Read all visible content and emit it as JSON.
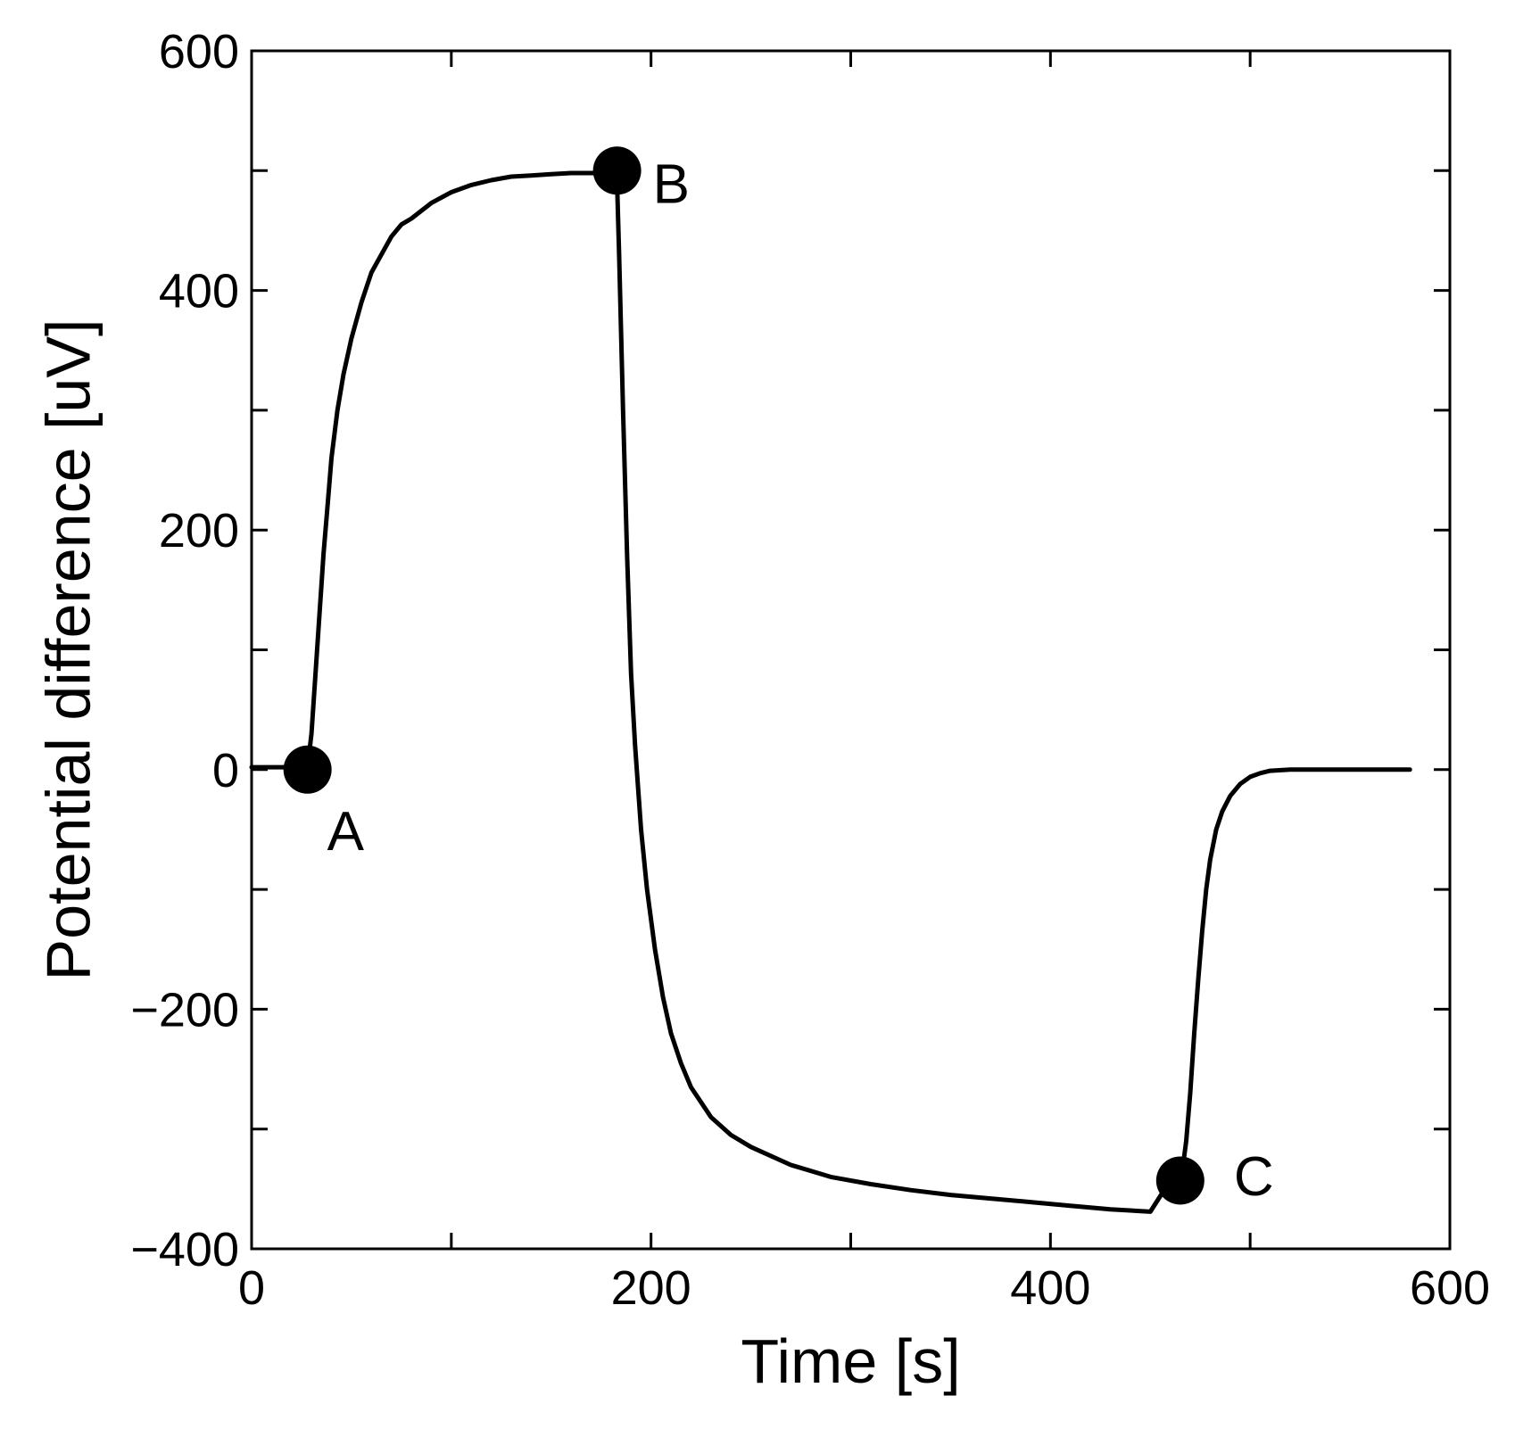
{
  "chart_data": {
    "type": "line",
    "title": "",
    "xlabel": "Time [s]",
    "ylabel": "Potential difference [uV]",
    "xlim": [
      0,
      600
    ],
    "ylim": [
      -400,
      600
    ],
    "xticks": [
      0,
      200,
      400,
      600
    ],
    "yticks": [
      600,
      400,
      200,
      0,
      -200,
      -400
    ],
    "xtick_labels": [
      "0",
      "200",
      "400",
      "600"
    ],
    "ytick_labels": [
      "600",
      "400",
      "200",
      "0",
      "−200",
      "−400"
    ],
    "x_minor_step": 100,
    "y_minor_step": 100,
    "grid": false,
    "legend": "none",
    "series": [
      {
        "name": "Potential difference",
        "color": "#000000",
        "x": [
          0,
          10,
          20,
          28,
          30,
          32,
          34,
          36,
          38,
          40,
          43,
          46,
          50,
          55,
          60,
          65,
          70,
          75,
          80,
          90,
          100,
          110,
          120,
          130,
          140,
          150,
          160,
          170,
          180,
          183,
          184,
          186,
          188,
          190,
          192,
          195,
          198,
          202,
          206,
          210,
          215,
          220,
          230,
          240,
          250,
          270,
          290,
          310,
          330,
          350,
          370,
          390,
          410,
          430,
          450,
          460,
          465,
          466,
          468,
          470,
          472,
          474,
          476,
          478,
          480,
          483,
          486,
          490,
          495,
          500,
          505,
          510,
          520,
          530,
          540,
          550,
          560,
          570,
          580
        ],
        "y": [
          2,
          2,
          2,
          2,
          30,
          80,
          130,
          180,
          220,
          260,
          300,
          330,
          360,
          390,
          415,
          430,
          445,
          455,
          460,
          473,
          482,
          488,
          492,
          495,
          496,
          497,
          498,
          498,
          498,
          490,
          430,
          300,
          180,
          80,
          20,
          -50,
          -100,
          -150,
          -190,
          -220,
          -245,
          -265,
          -290,
          -305,
          -315,
          -330,
          -340,
          -346,
          -351,
          -355,
          -358,
          -361,
          -364,
          -367,
          -369,
          -343,
          -340,
          -335,
          -310,
          -270,
          -220,
          -175,
          -135,
          -100,
          -75,
          -50,
          -35,
          -22,
          -12,
          -6,
          -3,
          -1,
          0,
          0,
          0,
          0,
          0,
          0,
          0
        ]
      }
    ],
    "points": [
      {
        "label": "A",
        "x": 28,
        "y": 0
      },
      {
        "label": "B",
        "x": 183,
        "y": 500
      },
      {
        "label": "C",
        "x": 465,
        "y": -343
      }
    ]
  }
}
